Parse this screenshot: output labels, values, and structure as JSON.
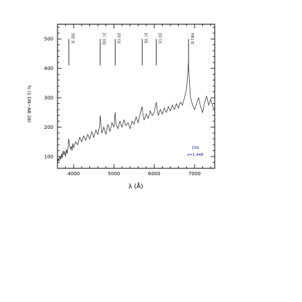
{
  "chart_data": {
    "type": "line",
    "title": "",
    "xlabel": "λ (Å)",
    "ylabel": "fν (1 DN−AB 28)",
    "xlim": [
      3600,
      7500
    ],
    "ylim": [
      60,
      550
    ],
    "x_ticks": [
      "4000",
      "5000",
      "6000",
      "7000"
    ],
    "y_ticks": [
      "100",
      "200",
      "300",
      "400",
      "500"
    ],
    "grid": false,
    "legend": {
      "placement": "bottom-right",
      "entries": [
        "15A",
        "z=1.448"
      ]
    },
    "line_labels": [
      {
        "label": "HE II",
        "x": 3880
      },
      {
        "label": "[C III]",
        "x": 4660
      },
      {
        "label": "[II O]",
        "x": 5030
      },
      {
        "label": "[C II]",
        "x": 5700
      },
      {
        "label": "[II O]",
        "x": 6050
      },
      {
        "label": "MG II",
        "x": 6850
      }
    ],
    "series": [
      {
        "values": [
          [
            3600,
            80
          ],
          [
            3620,
            92
          ],
          [
            3640,
            85
          ],
          [
            3660,
            100
          ],
          [
            3680,
            90
          ],
          [
            3700,
            110
          ],
          [
            3720,
            95
          ],
          [
            3740,
            120
          ],
          [
            3760,
            105
          ],
          [
            3780,
            118
          ],
          [
            3800,
            100
          ],
          [
            3820,
            125
          ],
          [
            3840,
            110
          ],
          [
            3860,
            130
          ],
          [
            3880,
            160
          ],
          [
            3900,
            140
          ],
          [
            3920,
            125
          ],
          [
            3940,
            135
          ],
          [
            3960,
            120
          ],
          [
            3980,
            145
          ],
          [
            4000,
            130
          ],
          [
            4050,
            150
          ],
          [
            4100,
            140
          ],
          [
            4150,
            165
          ],
          [
            4200,
            150
          ],
          [
            4250,
            170
          ],
          [
            4300,
            155
          ],
          [
            4350,
            175
          ],
          [
            4400,
            160
          ],
          [
            4450,
            185
          ],
          [
            4500,
            165
          ],
          [
            4550,
            190
          ],
          [
            4600,
            175
          ],
          [
            4640,
            200
          ],
          [
            4660,
            240
          ],
          [
            4680,
            205
          ],
          [
            4700,
            180
          ],
          [
            4750,
            200
          ],
          [
            4800,
            175
          ],
          [
            4850,
            210
          ],
          [
            4900,
            185
          ],
          [
            4950,
            215
          ],
          [
            5000,
            200
          ],
          [
            5030,
            250
          ],
          [
            5050,
            210
          ],
          [
            5100,
            195
          ],
          [
            5150,
            220
          ],
          [
            5200,
            200
          ],
          [
            5250,
            225
          ],
          [
            5300,
            205
          ],
          [
            5350,
            215
          ],
          [
            5400,
            195
          ],
          [
            5450,
            220
          ],
          [
            5500,
            210
          ],
          [
            5550,
            235
          ],
          [
            5600,
            215
          ],
          [
            5650,
            245
          ],
          [
            5700,
            270
          ],
          [
            5720,
            240
          ],
          [
            5750,
            225
          ],
          [
            5800,
            245
          ],
          [
            5850,
            230
          ],
          [
            5900,
            255
          ],
          [
            5950,
            240
          ],
          [
            6000,
            250
          ],
          [
            6050,
            285
          ],
          [
            6080,
            255
          ],
          [
            6100,
            240
          ],
          [
            6150,
            260
          ],
          [
            6200,
            245
          ],
          [
            6250,
            265
          ],
          [
            6300,
            250
          ],
          [
            6350,
            270
          ],
          [
            6400,
            255
          ],
          [
            6450,
            275
          ],
          [
            6500,
            260
          ],
          [
            6550,
            280
          ],
          [
            6600,
            265
          ],
          [
            6650,
            285
          ],
          [
            6700,
            275
          ],
          [
            6750,
            300
          ],
          [
            6800,
            330
          ],
          [
            6830,
            380
          ],
          [
            6850,
            420
          ],
          [
            6870,
            360
          ],
          [
            6900,
            300
          ],
          [
            6950,
            275
          ],
          [
            7000,
            260
          ],
          [
            7050,
            280
          ],
          [
            7100,
            300
          ],
          [
            7150,
            270
          ],
          [
            7200,
            250
          ],
          [
            7250,
            285
          ],
          [
            7300,
            305
          ],
          [
            7350,
            275
          ],
          [
            7400,
            295
          ],
          [
            7450,
            270
          ],
          [
            7500,
            260
          ]
        ]
      }
    ]
  }
}
